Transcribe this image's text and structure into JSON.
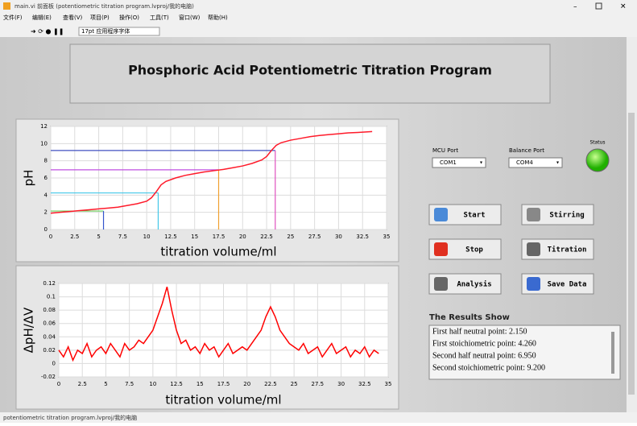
{
  "window": {
    "title": "main.vi 前面板 (potentiometric titration program.lvproj/我的电脑)",
    "menu": [
      "文件(F)",
      "编辑(E)",
      "查看(V)",
      "项目(P)",
      "操作(O)",
      "工具(T)",
      "窗口(W)",
      "帮助(H)"
    ],
    "font": "17pt 应用程序字体",
    "status_bar": "potentiometric titration program.lvproj/我的电脑"
  },
  "panel": {
    "title": "Phosphoric Acid Potentiometric Titration Program",
    "mcu_port": {
      "label": "MCU Port",
      "value": "COM1"
    },
    "balance_port": {
      "label": "Balance Port",
      "value": "COM4"
    },
    "status": "Status",
    "buttons": [
      "Start",
      "Stirring",
      "Stop",
      "Titration",
      "Analysis",
      "Save Data"
    ],
    "results_title": "The Results Show",
    "results": [
      "First half neutral point:  2.150",
      "First stoichiometric point:  4.260",
      "Second half neutral point:  6.950",
      "Second stoichiometric point:  9.200"
    ]
  },
  "chart_data": [
    {
      "type": "line",
      "x_label": "titration volume/ml",
      "y_label": "pH",
      "color": "#ff1a2a",
      "x": [
        0,
        1,
        2,
        3,
        4,
        5,
        6,
        7,
        8,
        9,
        10,
        10.5,
        11,
        11.5,
        12,
        13,
        14,
        15,
        16,
        17,
        18,
        19,
        20,
        21,
        22,
        22.5,
        23,
        23.5,
        24,
        25,
        26,
        27,
        28,
        29,
        30,
        31,
        32,
        33.5
      ],
      "values": [
        1.9,
        2.0,
        2.1,
        2.2,
        2.3,
        2.4,
        2.5,
        2.6,
        2.8,
        3.0,
        3.3,
        3.7,
        4.4,
        5.2,
        5.6,
        6.0,
        6.3,
        6.5,
        6.7,
        6.85,
        7.0,
        7.2,
        7.4,
        7.7,
        8.1,
        8.5,
        9.2,
        9.8,
        10.1,
        10.4,
        10.6,
        10.8,
        10.95,
        11.05,
        11.15,
        11.25,
        11.3,
        11.4
      ],
      "xlim": [
        0,
        35
      ],
      "xticks": [
        0,
        2.5,
        5,
        7.5,
        10,
        12.5,
        15,
        17.5,
        20,
        22.5,
        25,
        27.5,
        30,
        32.5,
        35
      ],
      "ylim": [
        0,
        12
      ],
      "yticks": [
        0,
        2,
        4,
        6,
        8,
        10,
        12
      ],
      "grid": true,
      "guides": [
        {
          "x": 5.5,
          "y": 2.15,
          "h_color": "#66cc55",
          "v_color": "#3355cc"
        },
        {
          "x": 11.2,
          "y": 4.26,
          "h_color": "#44c8e8",
          "v_color": "#44c8e8"
        },
        {
          "x": 17.5,
          "y": 6.95,
          "h_color": "#c050e0",
          "v_color": "#f0a030"
        },
        {
          "x": 23.4,
          "y": 9.2,
          "h_color": "#4050c0",
          "v_color": "#e050c0"
        }
      ]
    },
    {
      "type": "line",
      "x_label": "titration volume/ml",
      "y_label": "ΔpH/ΔV",
      "color": "#ff0000",
      "x": [
        0,
        0.5,
        1,
        1.5,
        2,
        2.5,
        3,
        3.5,
        4,
        4.5,
        5,
        5.5,
        6,
        6.5,
        7,
        7.5,
        8,
        8.5,
        9,
        9.5,
        10,
        10.5,
        11,
        11.5,
        12,
        12.5,
        13,
        13.5,
        14,
        14.5,
        15,
        15.5,
        16,
        16.5,
        17,
        17.5,
        18,
        18.5,
        19,
        19.5,
        20,
        20.5,
        21,
        21.5,
        22,
        22.5,
        23,
        23.5,
        24,
        24.5,
        25,
        25.5,
        26,
        26.5,
        27,
        27.5,
        28,
        28.5,
        29,
        29.5,
        30,
        30.5,
        31,
        31.5,
        32,
        32.5,
        33,
        33.5,
        34
      ],
      "values": [
        0.02,
        0.01,
        0.025,
        0.005,
        0.02,
        0.015,
        0.03,
        0.01,
        0.02,
        0.025,
        0.015,
        0.03,
        0.02,
        0.01,
        0.03,
        0.02,
        0.025,
        0.035,
        0.03,
        0.04,
        0.05,
        0.07,
        0.09,
        0.115,
        0.08,
        0.05,
        0.03,
        0.035,
        0.02,
        0.025,
        0.015,
        0.03,
        0.02,
        0.025,
        0.01,
        0.02,
        0.03,
        0.015,
        0.02,
        0.025,
        0.02,
        0.03,
        0.04,
        0.05,
        0.07,
        0.085,
        0.07,
        0.05,
        0.04,
        0.03,
        0.025,
        0.02,
        0.03,
        0.015,
        0.02,
        0.025,
        0.01,
        0.02,
        0.03,
        0.015,
        0.02,
        0.025,
        0.01,
        0.02,
        0.015,
        0.025,
        0.01,
        0.02,
        0.015
      ],
      "xlim": [
        0,
        35
      ],
      "xticks": [
        0,
        2.5,
        5,
        7.5,
        10,
        12.5,
        15,
        17.5,
        20,
        22.5,
        25,
        27.5,
        30,
        32.5,
        35
      ],
      "ylim": [
        -0.02,
        0.12
      ],
      "yticks": [
        -0.02,
        0,
        0.02,
        0.04,
        0.06,
        0.08,
        0.1,
        0.12
      ],
      "grid": true
    }
  ]
}
